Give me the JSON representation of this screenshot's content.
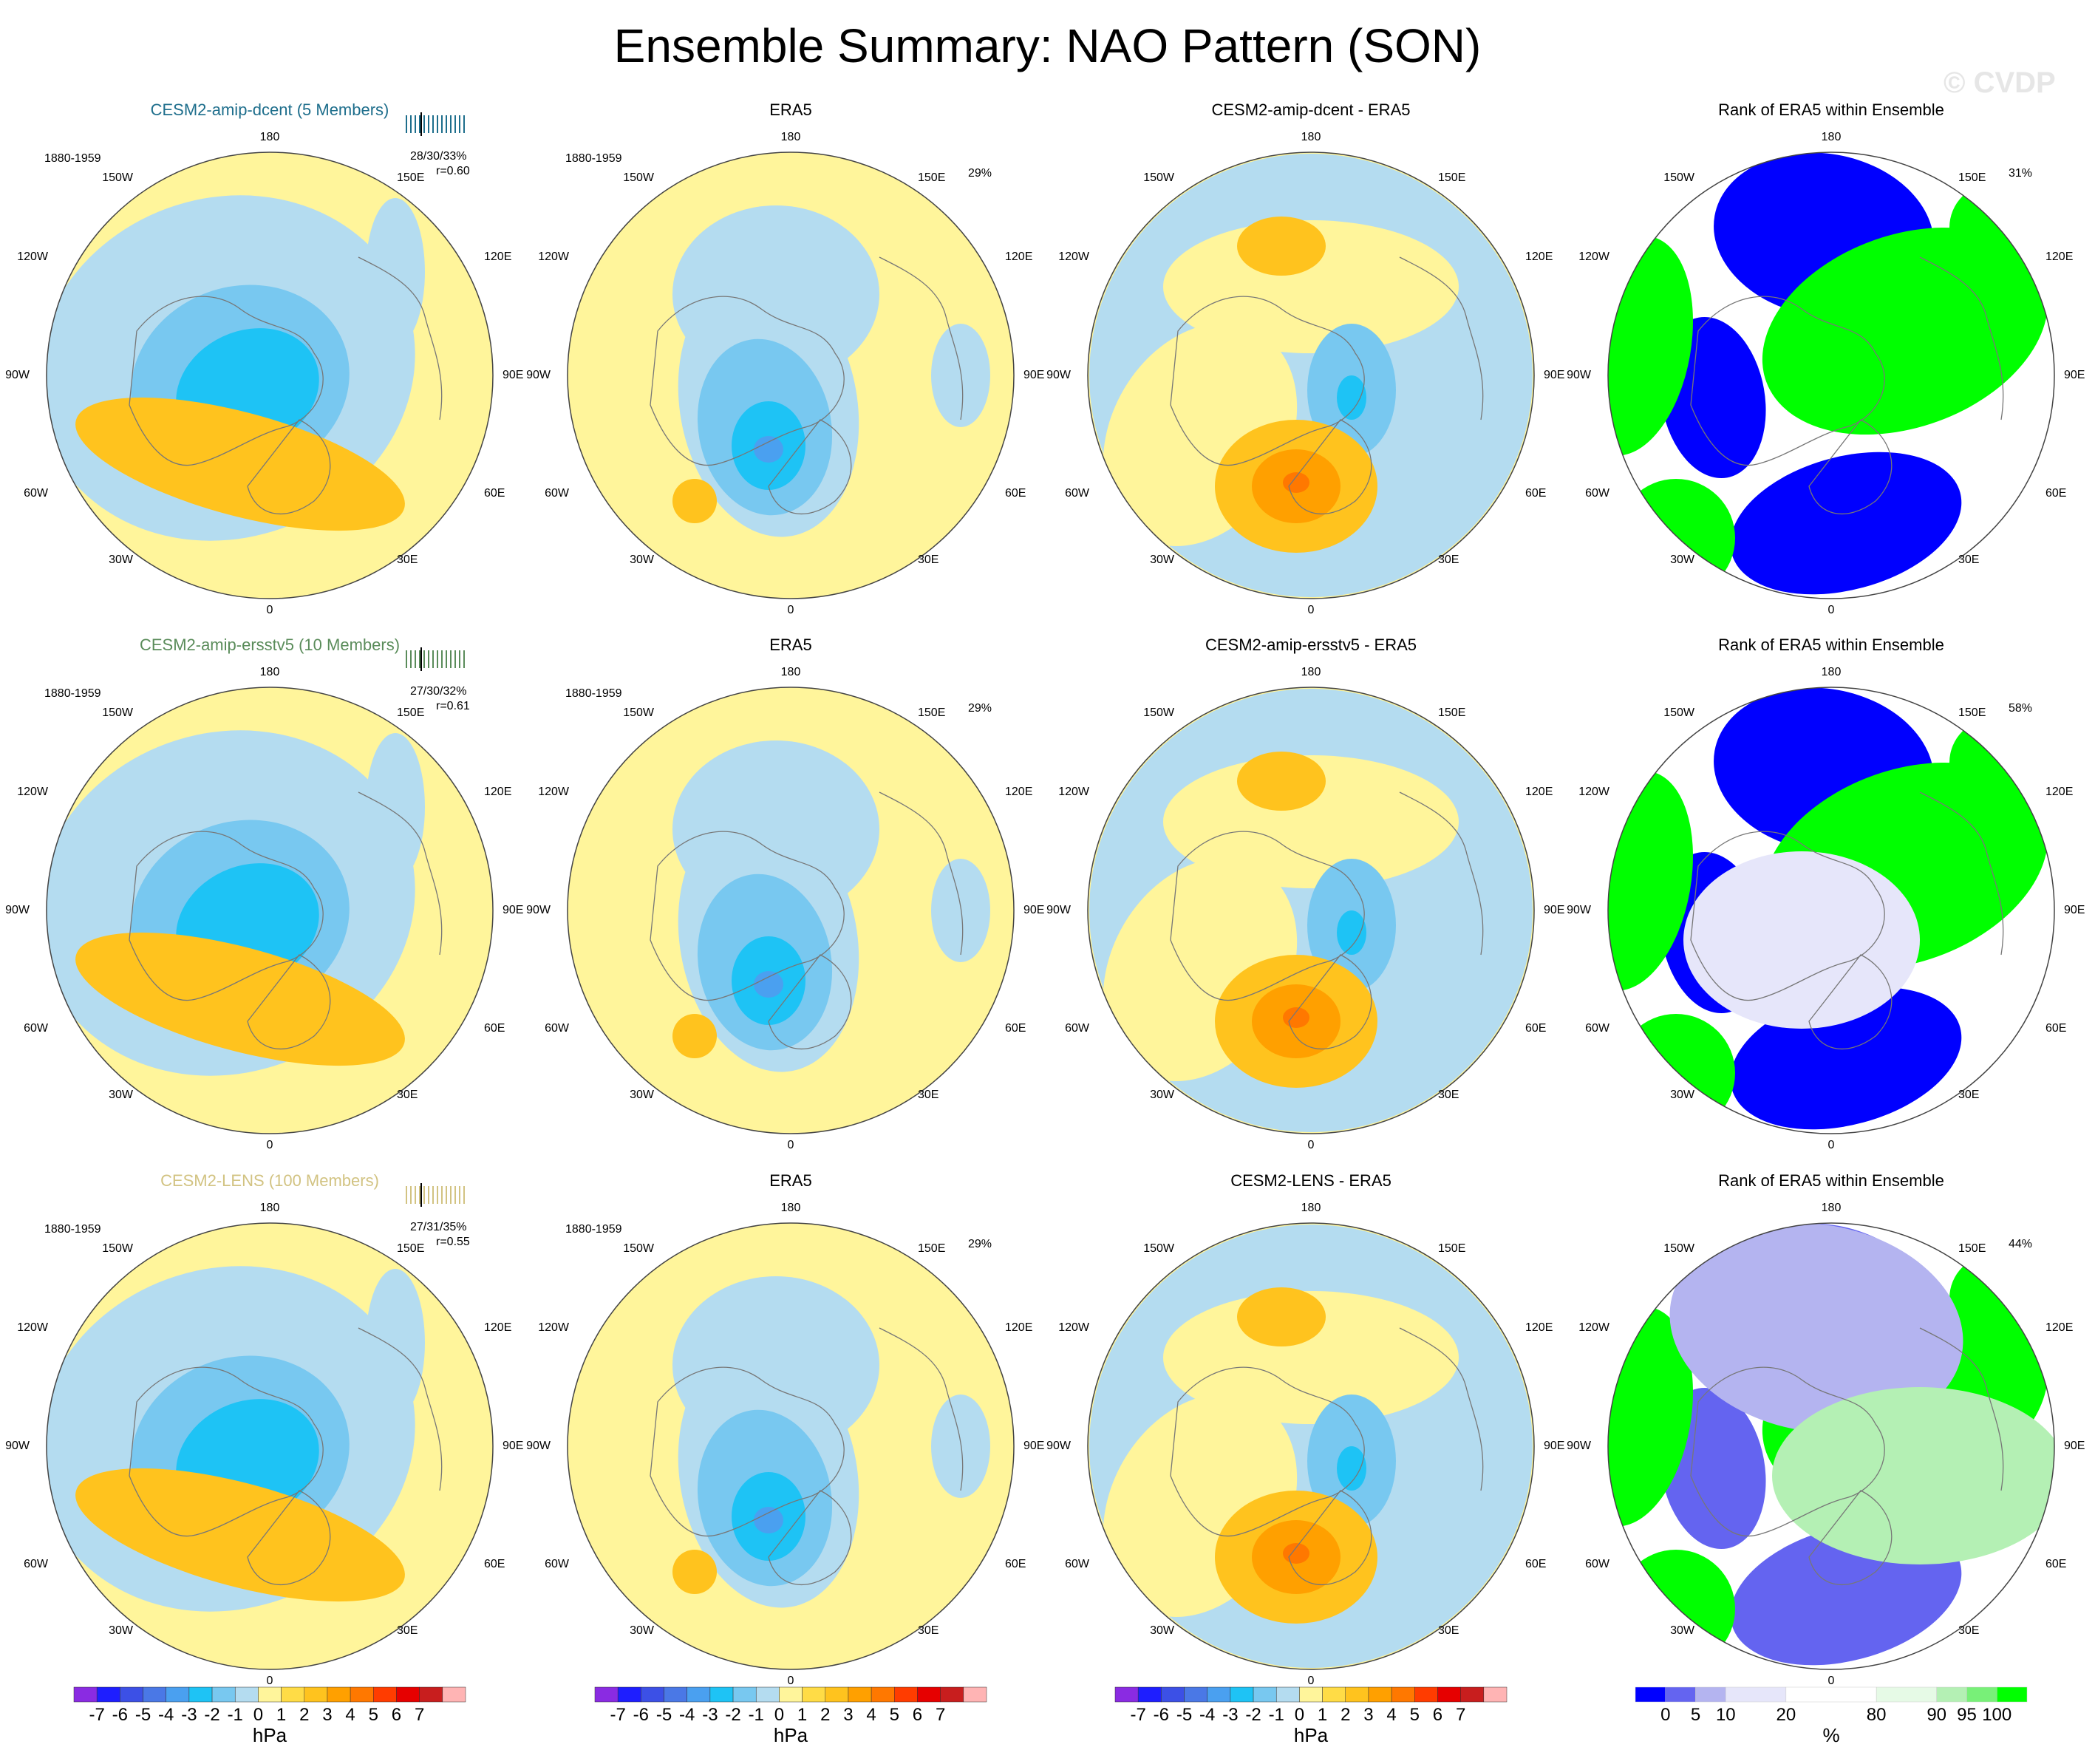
{
  "title": "Ensemble Summary: NAO Pattern (SON)",
  "watermark": "© CVDP",
  "lon_labels": {
    "top": "180",
    "bottom": "0",
    "w150": "150W",
    "w120": "120W",
    "w90": "90W",
    "w60": "60W",
    "w30": "30W",
    "e150": "150E",
    "e120": "120E",
    "e90": "90E",
    "e60": "60E",
    "e30": "30E"
  },
  "colors": {
    "pressure_scale": [
      "#8a2be2",
      "#1e1eff",
      "#3c50e6",
      "#4a78e6",
      "#4aa0f0",
      "#1ec3f5",
      "#78c8f0",
      "#b4dcf0",
      "#fff59b",
      "#ffdc46",
      "#ffc31e",
      "#ffa000",
      "#ff7800",
      "#ff3c00",
      "#e60000",
      "#c81e1e",
      "#ffb4b4"
    ],
    "rank_scale": [
      "#0000ff",
      "#6464f0",
      "#b4b4f0",
      "#e6e6fa",
      "#ffffff",
      "#e6fae6",
      "#b4f0b4",
      "#78f078",
      "#00ff00"
    ],
    "row_titles": [
      "#1e6e8c",
      "#5a8c5a",
      "#d2c382"
    ]
  },
  "rows": [
    {
      "ens_title": "CESM2-amip-dcent (5 Members)",
      "period": "1880-1959",
      "ens_pct": "28/30/33%",
      "ens_r": "r=0.60",
      "obs_title": "ERA5",
      "obs_period": "1880-1959",
      "obs_pct": "29%",
      "diff_title": "CESM2-amip-dcent - ERA5",
      "rank_title": "Rank of ERA5 within Ensemble",
      "rank_pct": "31%"
    },
    {
      "ens_title": "CESM2-amip-ersstv5 (10 Members)",
      "period": "1880-1959",
      "ens_pct": "27/30/32%",
      "ens_r": "r=0.61",
      "obs_title": "ERA5",
      "obs_period": "1880-1959",
      "obs_pct": "29%",
      "diff_title": "CESM2-amip-ersstv5 - ERA5",
      "rank_title": "Rank of ERA5 within Ensemble",
      "rank_pct": "58%"
    },
    {
      "ens_title": "CESM2-LENS (100 Members)",
      "period": "1880-1959",
      "ens_pct": "27/31/35%",
      "ens_r": "r=0.55",
      "obs_title": "ERA5",
      "obs_period": "1880-1959",
      "obs_pct": "29%",
      "diff_title": "CESM2-LENS - ERA5",
      "rank_title": "Rank of ERA5 within Ensemble",
      "rank_pct": "44%"
    }
  ],
  "colorbars": {
    "pressure_ticks": [
      "-7",
      "-6",
      "-5",
      "-4",
      "-3",
      "-2",
      "-1",
      "0",
      "1",
      "2",
      "3",
      "4",
      "5",
      "6",
      "7"
    ],
    "pressure_unit": "hPa",
    "rank_ticks": [
      "0",
      "5",
      "10",
      "20",
      "80",
      "90",
      "95",
      "100"
    ],
    "rank_unit": "%"
  }
}
